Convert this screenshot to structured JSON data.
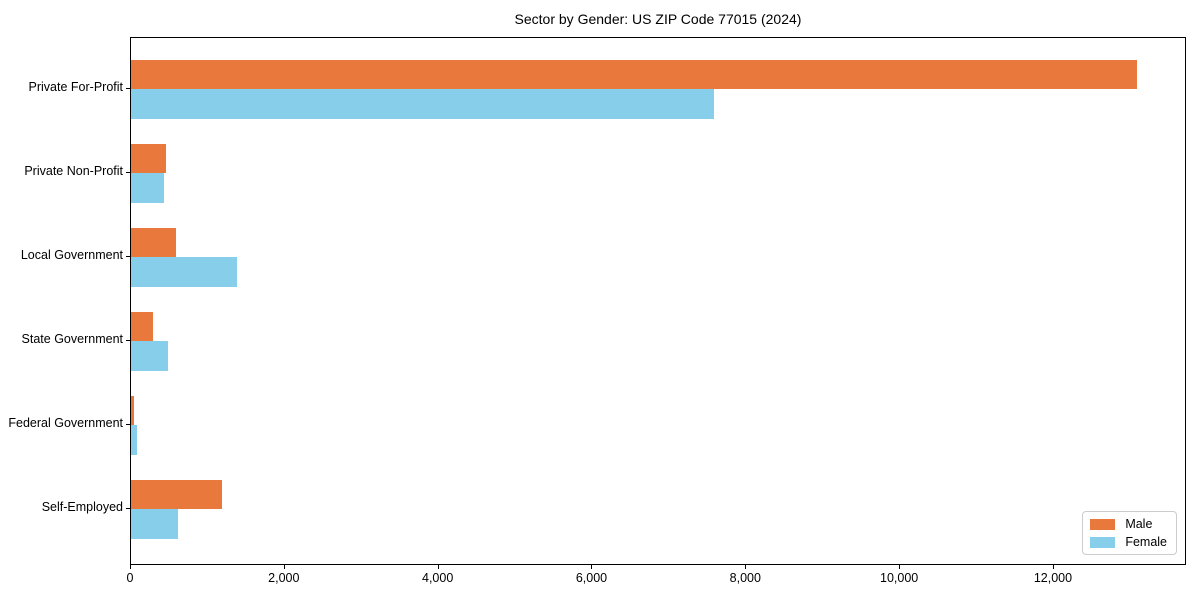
{
  "chart_data": {
    "type": "bar",
    "orientation": "horizontal",
    "title": "Sector by Gender: US ZIP Code 77015 (2024)",
    "categories": [
      "Private For-Profit",
      "Private Non-Profit",
      "Local Government",
      "State Government",
      "Federal Government",
      "Self-Employed"
    ],
    "series": [
      {
        "name": "Male",
        "color": "#e9783c",
        "values": [
          13080,
          450,
          585,
          290,
          45,
          1185
        ]
      },
      {
        "name": "Female",
        "color": "#87ceeb",
        "values": [
          7580,
          435,
          1380,
          485,
          80,
          615
        ]
      }
    ],
    "xlabel": "",
    "ylabel": "",
    "xlim": [
      0,
      13730
    ],
    "x_ticks": [
      0,
      2000,
      4000,
      6000,
      8000,
      10000,
      12000
    ],
    "x_tick_labels": [
      "0",
      "2,000",
      "4,000",
      "6,000",
      "8,000",
      "10,000",
      "12,000"
    ],
    "grid": false,
    "legend_position": "lower right",
    "legend_title": "",
    "background_color": "#ffffff",
    "spine_color": "#000000",
    "legend_border_color": "#cccccc"
  }
}
